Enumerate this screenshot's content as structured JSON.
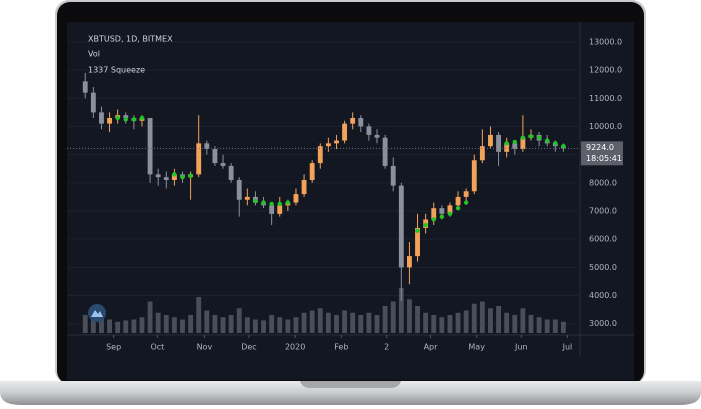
{
  "chart_data": {
    "type": "candlestick",
    "title": "XBTUSD, 1D, BITMEX",
    "indicators": [
      "Vol",
      "1337 Squeeze"
    ],
    "open": [
      11600,
      11200,
      10500,
      10100,
      10300,
      10400,
      10300,
      10200,
      10300,
      8300,
      8200,
      8100,
      8300,
      8200,
      8300,
      9400,
      9200,
      8700,
      8600,
      8100,
      7400,
      7500,
      7300,
      7200,
      6900,
      7200,
      7300,
      7600,
      8100,
      8700,
      9300,
      9400,
      9500,
      10100,
      10300,
      10000,
      9700,
      9600,
      8600,
      7900,
      5000,
      5400,
      6400,
      6700,
      7100,
      6900,
      7200,
      7500,
      7700,
      8800,
      9300,
      9700,
      9100,
      9400,
      9200,
      9600,
      9700,
      9500,
      9400,
      9300
    ],
    "high": [
      11900,
      11400,
      10700,
      10500,
      10600,
      10500,
      10400,
      10400,
      10300,
      8500,
      8400,
      8500,
      8400,
      8400,
      10400,
      9500,
      9300,
      9000,
      8700,
      8200,
      7800,
      7700,
      7500,
      7300,
      7500,
      7400,
      7800,
      8300,
      8800,
      9400,
      9600,
      9700,
      10200,
      10500,
      10400,
      10100,
      9900,
      9700,
      8900,
      8000,
      5900,
      6900,
      6900,
      7300,
      7200,
      7300,
      7700,
      7800,
      9000,
      9900,
      10000,
      9800,
      9600,
      9500,
      10400,
      9900,
      9800,
      9700,
      9500,
      9400
    ],
    "low": [
      11000,
      10300,
      9900,
      9800,
      10100,
      10100,
      9900,
      10000,
      8000,
      7900,
      7800,
      7900,
      8000,
      7400,
      8200,
      9000,
      8600,
      8500,
      8000,
      6800,
      7200,
      7200,
      7100,
      6500,
      6800,
      7000,
      7200,
      7500,
      8000,
      8500,
      9100,
      9200,
      9400,
      9900,
      9800,
      9500,
      9400,
      8500,
      7700,
      3800,
      4400,
      5200,
      6200,
      6500,
      6700,
      6800,
      7100,
      7300,
      7600,
      8700,
      9200,
      8600,
      8900,
      9000,
      9100,
      9500,
      9300,
      9300,
      9100,
      9100
    ],
    "close": [
      11200,
      10500,
      10100,
      10300,
      10400,
      10300,
      10200,
      10300,
      8300,
      8200,
      8100,
      8300,
      8200,
      8300,
      9400,
      9200,
      8700,
      8600,
      8100,
      7400,
      7500,
      7300,
      7200,
      6900,
      7200,
      7300,
      7600,
      8100,
      8700,
      9300,
      9400,
      9500,
      10100,
      10300,
      10000,
      9700,
      9600,
      8600,
      7900,
      5000,
      5400,
      6400,
      6700,
      7100,
      6900,
      7200,
      7500,
      7700,
      8800,
      9300,
      9700,
      9100,
      9400,
      9200,
      9600,
      9700,
      9500,
      9400,
      9300,
      9224
    ],
    "volume": [
      40,
      45,
      35,
      30,
      25,
      28,
      30,
      35,
      70,
      45,
      40,
      35,
      30,
      40,
      80,
      50,
      40,
      35,
      40,
      55,
      35,
      30,
      28,
      40,
      35,
      30,
      35,
      45,
      50,
      55,
      45,
      40,
      50,
      45,
      40,
      45,
      40,
      60,
      70,
      100,
      75,
      60,
      45,
      40,
      35,
      40,
      45,
      50,
      65,
      70,
      55,
      60,
      45,
      40,
      55,
      40,
      35,
      30,
      30,
      25
    ],
    "vlim": [
      0,
      100
    ],
    "squeeze": {
      "color": "#22c42a",
      "values": [
        null,
        null,
        null,
        null,
        10300,
        10250,
        10250,
        10300,
        null,
        null,
        null,
        8300,
        8200,
        8250,
        null,
        null,
        null,
        null,
        null,
        null,
        null,
        7350,
        7300,
        7250,
        7250,
        7300,
        null,
        null,
        null,
        null,
        null,
        null,
        null,
        null,
        null,
        null,
        null,
        null,
        null,
        null,
        null,
        6300,
        6500,
        6700,
        6800,
        6900,
        7100,
        7300,
        null,
        null,
        null,
        null,
        9400,
        9450,
        9600,
        9650,
        9600,
        9500,
        9400,
        9300
      ]
    },
    "up_color": "#f3a25a",
    "down_color": "#8b919c",
    "volume_color": "#4a4e58",
    "xlim": [
      -0.4,
      60.8
    ],
    "xticks": [
      {
        "value": 3.5,
        "label": "Sep"
      },
      {
        "value": 8.9,
        "label": "Oct"
      },
      {
        "value": 14.7,
        "label": "Nov"
      },
      {
        "value": 20.2,
        "label": "Dec"
      },
      {
        "value": 25.9,
        "label": "2020"
      },
      {
        "value": 31.6,
        "label": "Feb"
      },
      {
        "value": 37.2,
        "label": "2"
      },
      {
        "value": 42.6,
        "label": "Apr"
      },
      {
        "value": 48.3,
        "label": "May"
      },
      {
        "value": 53.8,
        "label": "Jun"
      },
      {
        "value": 59.5,
        "label": "Jul"
      }
    ],
    "ylim": [
      2600,
      13600
    ],
    "yticks": [
      {
        "value": 3000,
        "label": "3000.0"
      },
      {
        "value": 4000,
        "label": "4000.0"
      },
      {
        "value": 5000,
        "label": "5000.0"
      },
      {
        "value": 6000,
        "label": "6000.0"
      },
      {
        "value": 7000,
        "label": "7000.0"
      },
      {
        "value": 8000,
        "label": "8000.0"
      },
      {
        "value": 9000,
        "label": "9000.0"
      },
      {
        "value": 10000,
        "label": "10000.0"
      },
      {
        "value": 11000,
        "label": "11000.0"
      },
      {
        "value": 12000,
        "label": "12000.0"
      },
      {
        "value": 13000,
        "label": "13000.0"
      }
    ],
    "last_price_label": "9224.0",
    "countdown": "18:05:41"
  }
}
